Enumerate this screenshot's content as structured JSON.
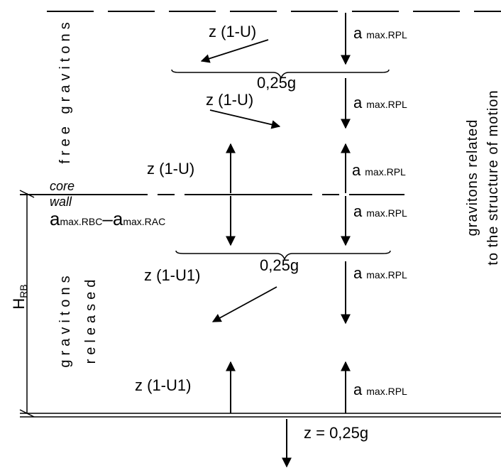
{
  "labels": {
    "a_max_rpl_prefix": "a",
    "a_max_rpl_sub": "max.RPL",
    "z_1_u": "z (1-U)",
    "z_1_u1": "z (1-U1)",
    "quarter_g": "0,25g",
    "core": "core",
    "wall": "wall",
    "a_rbc_rac_a1": "a",
    "a_rbc_rac_s1": "max.RBC",
    "a_rbc_rac_dash": "–",
    "a_rbc_rac_a2": "a",
    "a_rbc_rac_s2": "max.RAC",
    "z_final": "z = 0,25g",
    "h_rb_prefix": "H",
    "h_rb_sub": "RB"
  },
  "side_texts": {
    "free_gravitons": "free gravitons",
    "gravitons": "gravitons",
    "released": "released",
    "related_line1": "gravitons related",
    "related_line2": "to the structure of motion"
  },
  "colors": {
    "line": "#000000",
    "background": "#ffffff"
  }
}
